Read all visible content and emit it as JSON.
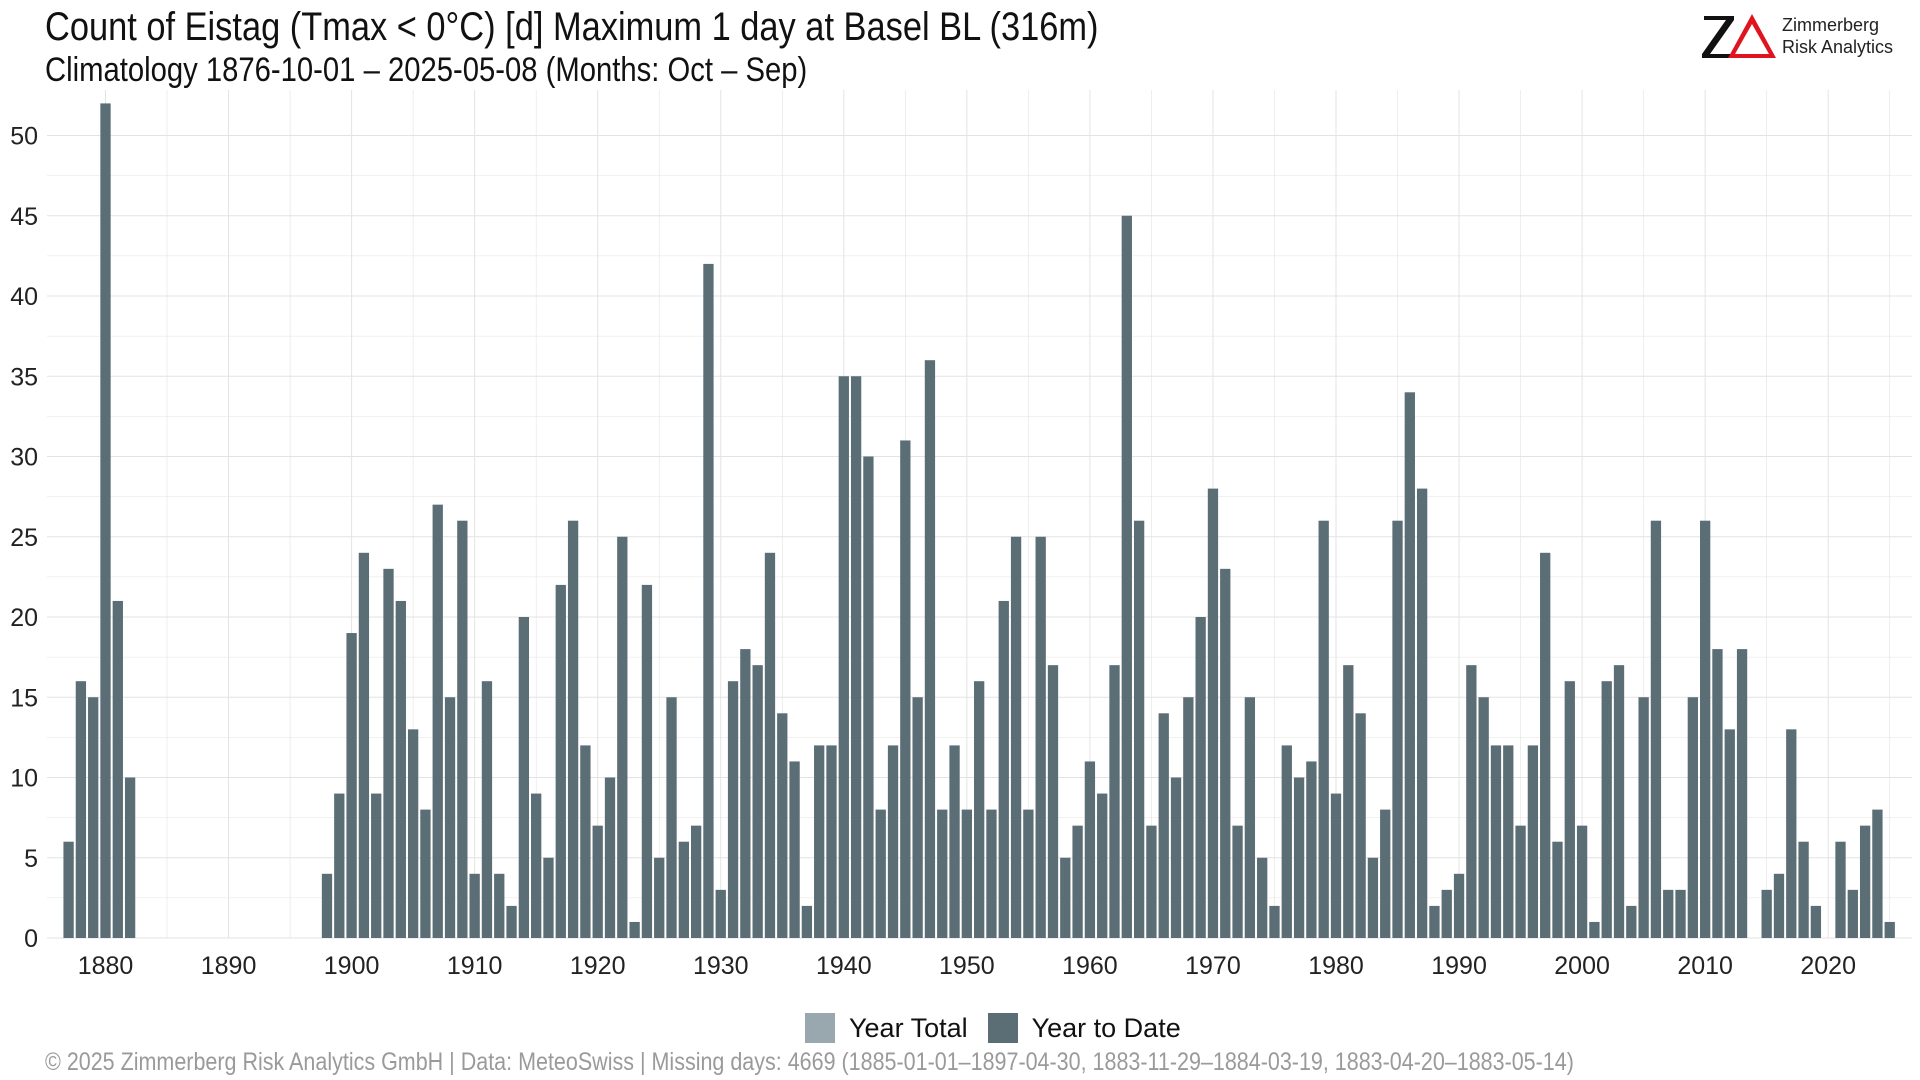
{
  "header": {
    "title": "Count of Eistag (Tmax < 0°C) [d] Maximum 1 day at Basel  BL (316m)",
    "subtitle": "Climatology 1876-10-01 – 2025-05-08 (Months: Oct – Sep)"
  },
  "logo": {
    "mark": "ZΔ",
    "line1": "Zimmerberg",
    "line2": "Risk Analytics",
    "z_color": "#111111",
    "delta_color": "#e0141e"
  },
  "footer": {
    "text": "©  2025 Zimmerberg Risk Analytics GmbH | Data: MeteoSwiss | Missing days: 4669 (1885-01-01–1897-04-30, 1883-11-29–1884-03-19, 1883-04-20–1883-05-14)"
  },
  "legend": {
    "items": [
      {
        "label": "Year Total",
        "color": "#98a8ae"
      },
      {
        "label": "Year to Date",
        "color": "#5b6e75"
      }
    ]
  },
  "colors": {
    "bar": "#5b6e75",
    "grid": "#e3e3e3",
    "axis_text": "#222222"
  },
  "chart_data": {
    "type": "bar",
    "grid": true,
    "legend_position": "bottom",
    "xlim": [
      1876,
      2025
    ],
    "ylim": [
      0,
      52
    ],
    "x_ticks": [
      1880,
      1890,
      1900,
      1910,
      1920,
      1930,
      1940,
      1950,
      1960,
      1970,
      1980,
      1990,
      2000,
      2010,
      2020
    ],
    "y_ticks": [
      0,
      5,
      10,
      15,
      20,
      25,
      30,
      35,
      40,
      45,
      50
    ],
    "series": [
      {
        "name": "Year to Date",
        "x": [
          1877,
          1878,
          1879,
          1880,
          1881,
          1882,
          1898,
          1899,
          1900,
          1901,
          1902,
          1903,
          1904,
          1905,
          1906,
          1907,
          1908,
          1909,
          1910,
          1911,
          1912,
          1913,
          1914,
          1915,
          1916,
          1917,
          1918,
          1919,
          1920,
          1921,
          1922,
          1923,
          1924,
          1925,
          1926,
          1927,
          1928,
          1929,
          1930,
          1931,
          1932,
          1933,
          1934,
          1935,
          1936,
          1937,
          1938,
          1939,
          1940,
          1941,
          1942,
          1943,
          1944,
          1945,
          1946,
          1947,
          1948,
          1949,
          1950,
          1951,
          1952,
          1953,
          1954,
          1955,
          1956,
          1957,
          1958,
          1959,
          1960,
          1961,
          1962,
          1963,
          1964,
          1965,
          1966,
          1967,
          1968,
          1969,
          1970,
          1971,
          1972,
          1973,
          1974,
          1975,
          1976,
          1977,
          1978,
          1979,
          1980,
          1981,
          1982,
          1983,
          1984,
          1985,
          1986,
          1987,
          1988,
          1989,
          1990,
          1991,
          1992,
          1993,
          1994,
          1995,
          1996,
          1997,
          1998,
          1999,
          2000,
          2001,
          2002,
          2003,
          2004,
          2005,
          2006,
          2007,
          2008,
          2009,
          2010,
          2011,
          2012,
          2013,
          2015,
          2016,
          2017,
          2018,
          2019,
          2021,
          2022,
          2023,
          2024,
          2025
        ],
        "values": [
          6,
          16,
          15,
          52,
          21,
          10,
          4,
          9,
          19,
          24,
          9,
          23,
          21,
          13,
          8,
          27,
          15,
          26,
          4,
          16,
          4,
          2,
          20,
          9,
          5,
          22,
          26,
          12,
          7,
          10,
          25,
          1,
          22,
          5,
          15,
          6,
          7,
          42,
          3,
          16,
          18,
          17,
          24,
          14,
          11,
          2,
          12,
          12,
          35,
          35,
          30,
          8,
          12,
          31,
          15,
          36,
          8,
          12,
          8,
          16,
          8,
          21,
          25,
          8,
          25,
          17,
          5,
          7,
          11,
          9,
          17,
          45,
          26,
          7,
          14,
          10,
          15,
          20,
          28,
          23,
          7,
          15,
          5,
          2,
          12,
          10,
          11,
          26,
          9,
          17,
          14,
          5,
          8,
          26,
          34,
          28,
          2,
          3,
          4,
          17,
          15,
          12,
          12,
          7,
          12,
          24,
          6,
          16,
          7,
          1,
          16,
          17,
          2,
          15,
          26,
          3,
          3,
          15,
          26,
          18,
          13,
          18,
          3,
          4,
          13,
          6,
          2,
          6,
          3,
          7,
          8,
          1
        ]
      }
    ]
  }
}
